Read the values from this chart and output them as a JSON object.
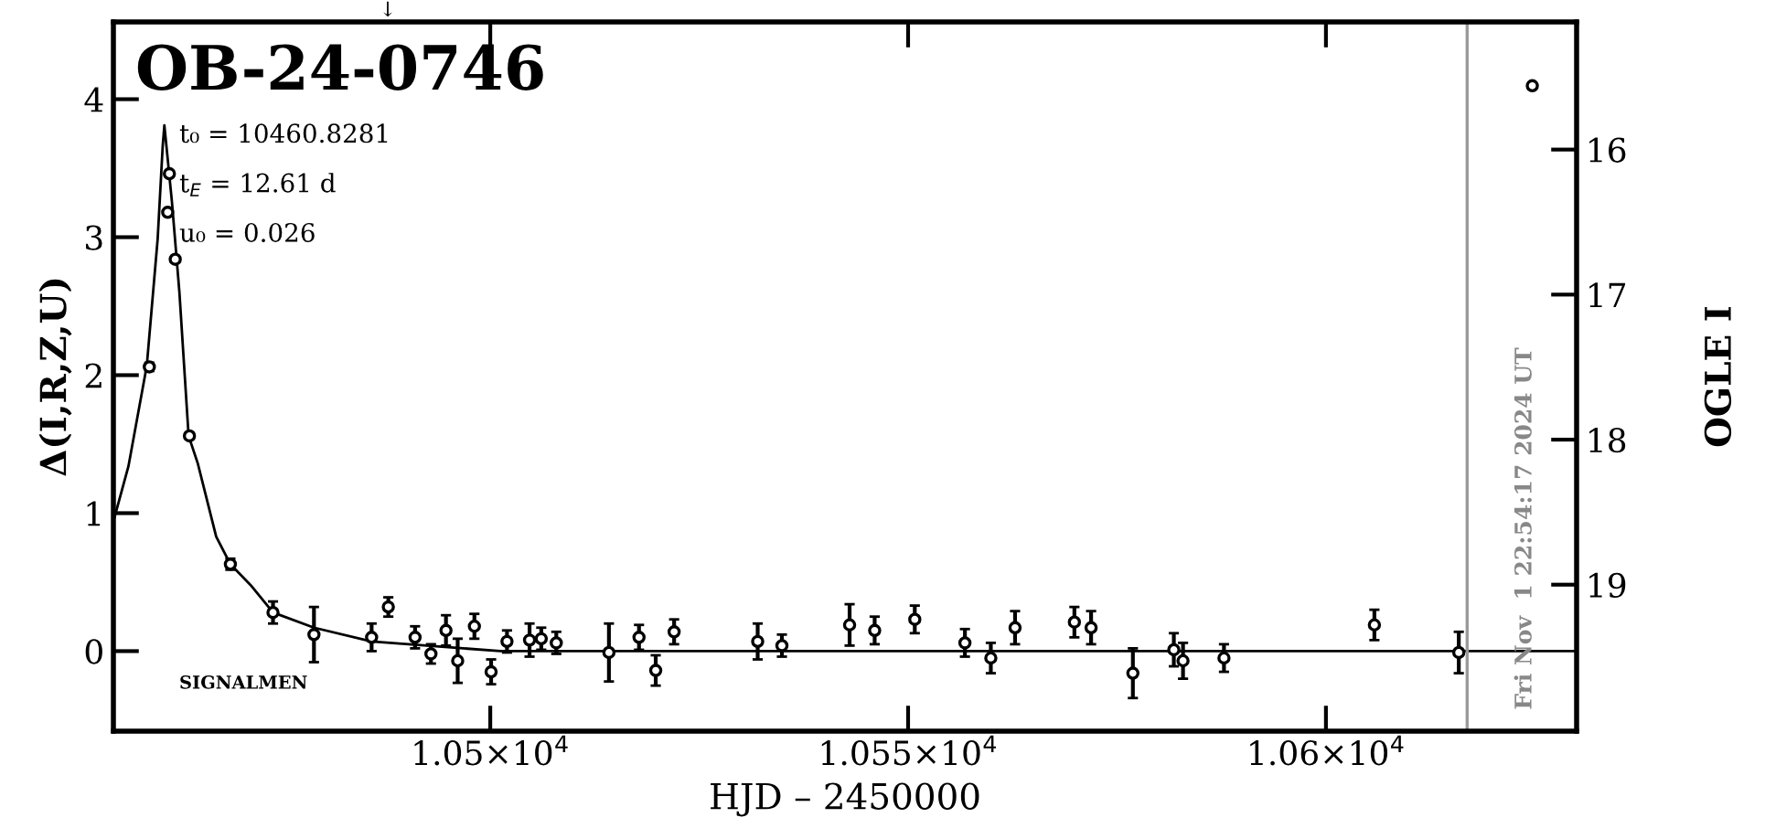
{
  "chart_data": {
    "type": "scatter",
    "title": "OB-24-0746",
    "xlabel": "HJD – 2450000",
    "ylabel": "Δ(I,R,Z,U)",
    "y2label": "OGLE I",
    "xlim": [
      10454.9,
      10630
    ],
    "xticks": [
      {
        "value": 10500,
        "label": "1.05×10$^{4}$"
      },
      {
        "value": 10550,
        "label": "1.055×10$^{4}$"
      },
      {
        "value": 10600,
        "label": "1.06×10$^{4}$"
      }
    ],
    "ylim": [
      -0.58,
      4.56
    ],
    "yticks": [
      0,
      1,
      2,
      3,
      4
    ],
    "y2lim": [
      20.01,
      15.12
    ],
    "y2ticks": [
      16,
      17,
      18,
      19
    ],
    "grid": false,
    "series": [
      {
        "type": "line",
        "color": "#000000",
        "marker": "none",
        "line_style": "solid",
        "x": [
          10454.9,
          10456.7,
          10458.9,
          10460.2,
          10460.8,
          10461.0,
          10461.9,
          10462.8,
          10463.9,
          10465.0,
          10467.2,
          10468.9,
          10471.3,
          10474.0,
          10478.9,
          10485.8,
          10494.6,
          10501.2,
          10630
        ],
        "values": [
          0.94,
          1.34,
          2.07,
          2.99,
          3.66,
          3.81,
          3.26,
          2.6,
          1.56,
          1.36,
          0.83,
          0.63,
          0.48,
          0.28,
          0.17,
          0.07,
          0.03,
          0.0,
          0.0
        ]
      },
      {
        "color": "#000000",
        "marker": "circle",
        "x": [
          10459.2,
          10464.0,
          10468.9,
          10474.0,
          10478.9,
          10485.8,
          10487.8,
          10491.0,
          10492.9,
          10494.7,
          10496.1,
          10498.1,
          10500.1,
          10502.0,
          10504.7,
          10506.1,
          10507.9,
          10514.2,
          10517.8,
          10519.8,
          10522.0,
          10532.0,
          10534.9,
          10543.0,
          10546.0,
          10550.8,
          10556.8,
          10559.9,
          10562.8,
          10569.9,
          10571.9,
          10576.9,
          10581.8,
          10582.9,
          10587.8,
          10605.8,
          10615.9
        ],
        "values": [
          2.06,
          1.56,
          0.63,
          0.28,
          0.12,
          0.1,
          0.32,
          0.1,
          -0.02,
          0.15,
          -0.07,
          0.18,
          -0.15,
          0.07,
          0.08,
          0.09,
          0.06,
          -0.01,
          0.1,
          -0.14,
          0.14,
          0.07,
          0.04,
          0.19,
          0.15,
          0.23,
          0.06,
          -0.05,
          0.17,
          0.21,
          0.17,
          -0.16,
          0.01,
          -0.07,
          -0.05,
          0.19,
          -0.01
        ],
        "errors": [
          0.03,
          0.02,
          0.04,
          0.08,
          0.2,
          0.1,
          0.07,
          0.08,
          0.07,
          0.11,
          0.16,
          0.09,
          0.09,
          0.08,
          0.12,
          0.08,
          0.08,
          0.21,
          0.09,
          0.11,
          0.09,
          0.13,
          0.08,
          0.15,
          0.1,
          0.1,
          0.1,
          0.11,
          0.12,
          0.11,
          0.12,
          0.18,
          0.12,
          0.13,
          0.1,
          0.11,
          0.15
        ]
      },
      {
        "color": "#000000",
        "marker": "circle",
        "x": [
          10461.6,
          10461.4,
          10462.3
        ],
        "values": [
          3.46,
          3.18,
          2.84
        ]
      },
      {
        "color": "#000000",
        "marker": "circle",
        "axis": "y2",
        "x": [
          10624.7
        ],
        "values": [
          15.56
        ]
      }
    ],
    "ref_lines": [
      {
        "axis": "x",
        "value": 10616.9,
        "color": "#999999",
        "line_style": "solid"
      }
    ],
    "annotations": [
      "t₀ = 10460.8281",
      "t$_{E}$ = 12.61 d",
      "u₀ = 0.026",
      "SIGNALMEN",
      "↓",
      "Fri Nov  1 22:54:17 2024 UT"
    ]
  }
}
